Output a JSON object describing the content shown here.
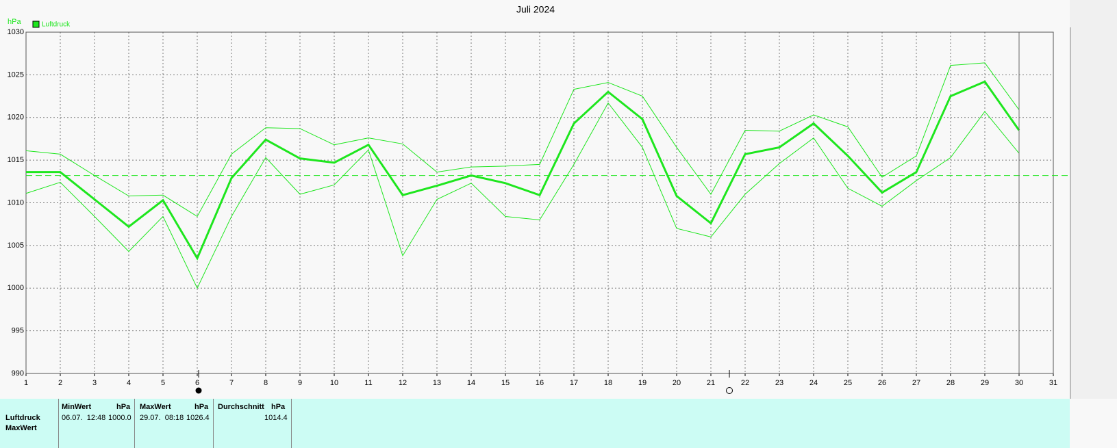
{
  "chart_data": {
    "type": "line",
    "title": "Juli 2024",
    "y_unit": "hPa",
    "x": [
      1,
      2,
      3,
      4,
      5,
      6,
      7,
      8,
      9,
      10,
      11,
      12,
      13,
      14,
      15,
      16,
      17,
      18,
      19,
      20,
      21,
      22,
      23,
      24,
      25,
      26,
      27,
      28,
      29,
      30
    ],
    "series": [
      {
        "name": "Luftdruck",
        "color": "#1ee61e",
        "values": [
          1013.6,
          1013.6,
          1010.4,
          1007.2,
          1010.3,
          1003.5,
          1012.9,
          1017.4,
          1015.2,
          1014.7,
          1016.8,
          1010.9,
          1012.0,
          1013.2,
          1012.3,
          1010.9,
          1019.3,
          1023.0,
          1019.8,
          1010.8,
          1007.6,
          1015.7,
          1016.5,
          1019.3,
          1015.5,
          1011.2,
          1013.6,
          1022.5,
          1024.2,
          1018.5
        ]
      },
      {
        "color": "#1ee61e",
        "values": [
          1016.1,
          1015.7,
          1013.2,
          1010.8,
          1010.9,
          1008.4,
          1015.7,
          1018.8,
          1018.7,
          1016.8,
          1017.6,
          1016.9,
          1013.6,
          1014.2,
          1014.3,
          1014.5,
          1023.3,
          1024.1,
          1022.5,
          1016.5,
          1011.0,
          1018.5,
          1018.4,
          1020.3,
          1018.9,
          1013.0,
          1015.5,
          1026.1,
          1026.4,
          1020.9
        ]
      },
      {
        "color": "#1ee61e",
        "values": [
          1011.1,
          1012.4,
          1008.4,
          1004.3,
          1008.4,
          1000.0,
          1008.4,
          1015.3,
          1011.0,
          1012.1,
          1016.2,
          1003.8,
          1010.4,
          1012.3,
          1008.4,
          1008.0,
          1014.5,
          1021.7,
          1016.5,
          1007.0,
          1006.0,
          1011.0,
          1014.6,
          1017.6,
          1011.7,
          1009.6,
          1012.6,
          1015.3,
          1020.7,
          1015.8
        ]
      }
    ],
    "mean_line": 1013.2,
    "xlim": [
      1,
      31
    ],
    "xticks": [
      1,
      2,
      3,
      4,
      5,
      6,
      7,
      8,
      9,
      10,
      11,
      12,
      13,
      14,
      15,
      16,
      17,
      18,
      19,
      20,
      21,
      22,
      23,
      24,
      25,
      26,
      27,
      28,
      29,
      30,
      31
    ],
    "ylim": [
      990,
      1030
    ],
    "yticks": [
      990,
      995,
      1000,
      1005,
      1010,
      1015,
      1020,
      1025,
      1030
    ],
    "grid": true
  },
  "summary_table": {
    "row_labels": [
      "Luftdruck",
      "MaxWert"
    ],
    "columns": [
      {
        "header": "MinWert",
        "unit": "hPa",
        "time": "06.07.  12:48",
        "value": "1000.0"
      },
      {
        "header": "MaxWert",
        "unit": "hPa",
        "time": "29.07.  08:18",
        "value": "1026.4"
      },
      {
        "header": "Durchschnitt",
        "unit": "hPa",
        "value": "1014.4"
      }
    ]
  }
}
